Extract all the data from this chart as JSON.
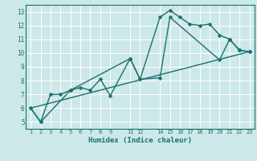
{
  "background_color": "#cde8e8",
  "grid_color": "#b0d4d4",
  "line_color": "#1a7070",
  "xlabel": "Humidex (Indice chaleur)",
  "xlim": [
    0.5,
    23.5
  ],
  "ylim": [
    4.5,
    13.5
  ],
  "xticks": [
    1,
    2,
    3,
    4,
    5,
    6,
    7,
    8,
    9,
    11,
    12,
    14,
    15,
    16,
    17,
    18,
    19,
    20,
    21,
    22,
    23
  ],
  "yticks": [
    5,
    6,
    7,
    8,
    9,
    10,
    11,
    12,
    13
  ],
  "line1": {
    "x": [
      1,
      2,
      3,
      4,
      5,
      6,
      7,
      8,
      9,
      11,
      12,
      14,
      15,
      16,
      17,
      18,
      19,
      20,
      21,
      22,
      23
    ],
    "y": [
      6.0,
      5.0,
      7.0,
      7.0,
      7.3,
      7.5,
      7.3,
      8.1,
      6.9,
      9.6,
      8.1,
      12.6,
      13.1,
      12.6,
      12.1,
      12.0,
      12.1,
      11.3,
      11.0,
      10.2,
      10.1
    ]
  },
  "line2": {
    "x": [
      1,
      2,
      5,
      11,
      12,
      14,
      15,
      20,
      21,
      22,
      23
    ],
    "y": [
      6.0,
      5.0,
      7.3,
      9.6,
      8.1,
      8.2,
      12.6,
      9.5,
      11.0,
      10.2,
      10.1
    ]
  },
  "line3": {
    "x": [
      1,
      23
    ],
    "y": [
      6.0,
      10.1
    ]
  }
}
